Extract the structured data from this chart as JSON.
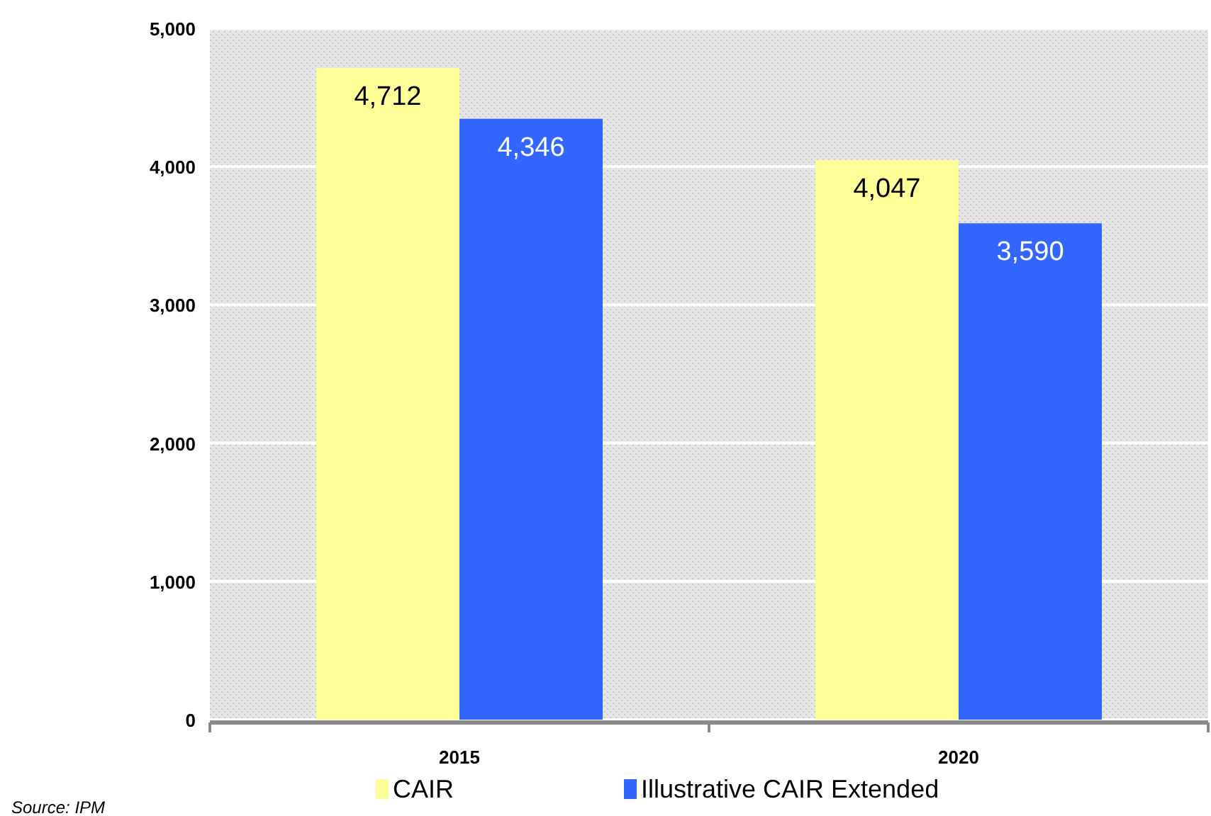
{
  "chart_data": {
    "type": "bar",
    "categories": [
      "2015",
      "2020"
    ],
    "series": [
      {
        "name": "CAIR",
        "color": "#ffff99",
        "values": [
          4712,
          4047
        ],
        "value_labels": [
          "4,712",
          "4,047"
        ]
      },
      {
        "name": "Illustrative CAIR Extended",
        "color": "#3366ff",
        "values": [
          4346,
          3590
        ],
        "value_labels": [
          "4,346",
          "3,590"
        ]
      }
    ],
    "ylim": [
      0,
      5000
    ],
    "yticks": [
      {
        "value": 0,
        "label": "0"
      },
      {
        "value": 1000,
        "label": "1,000"
      },
      {
        "value": 2000,
        "label": "2,000"
      },
      {
        "value": 3000,
        "label": "3,000"
      },
      {
        "value": 4000,
        "label": "4,000"
      },
      {
        "value": 5000,
        "label": "5,000"
      }
    ],
    "grid": "y",
    "legend": "bottom",
    "annotations": [
      "Source: IPM"
    ]
  }
}
